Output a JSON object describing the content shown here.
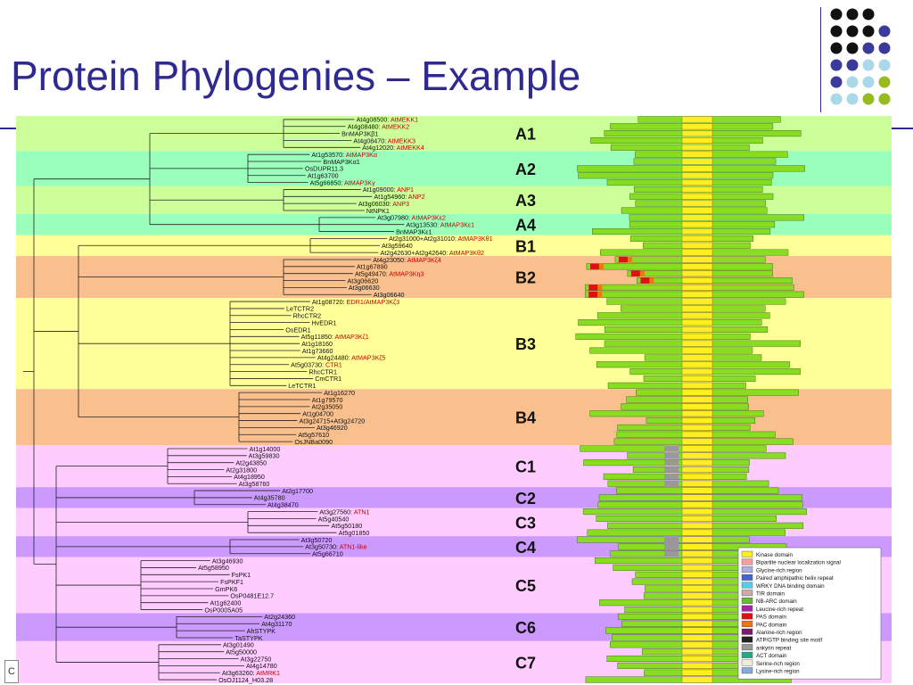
{
  "slide": {
    "title": "Protein Phylogenies – Example",
    "footer_text": "C"
  },
  "colors": {
    "title": "#2f2a8f",
    "band_green": "#ccff99",
    "band_green_alt": "#99ffbb",
    "band_yellow": "#ffff99",
    "band_orange": "#f9c08e",
    "band_pink": "#ffccff",
    "band_purple": "#cc99ff",
    "kinase_yellow": "#ffee22",
    "domain_green": "#88dd22",
    "label_red": "#cc0000",
    "dot_black": "#111111",
    "dot_indigo": "#3a3a9a",
    "dot_lightblue": "#aad8e8",
    "dot_olive": "#99bb22"
  },
  "groups": [
    {
      "label": "A1",
      "color": "#ccff99",
      "leaves": [
        {
          "id": "At4g08500",
          "alias": "AtMEKK1"
        },
        {
          "id": "At4g08480",
          "alias": "AtMEKK2"
        },
        {
          "id": "BnMAP3Kβ1",
          "alias": ""
        },
        {
          "id": "At4g08470",
          "alias": "AtMEKK3"
        },
        {
          "id": "At4g12020",
          "alias": "AtMEKK4"
        }
      ]
    },
    {
      "label": "A2",
      "color": "#99ffbb",
      "leaves": [
        {
          "id": "At1g53570",
          "alias": "AtMAP3Kα"
        },
        {
          "id": "BnMAP3Kα1",
          "alias": ""
        },
        {
          "id": "OsDUPR11.3",
          "alias": ""
        },
        {
          "id": "At1g63700",
          "alias": ""
        },
        {
          "id": "At5g66850",
          "alias": "AtMAP3Kγ"
        }
      ]
    },
    {
      "label": "A3",
      "color": "#ccff99",
      "leaves": [
        {
          "id": "At1g09000",
          "alias": "ANP1"
        },
        {
          "id": "At1g54960",
          "alias": "ANP2"
        },
        {
          "id": "At3g06030",
          "alias": "ANP3"
        },
        {
          "id": "NtNPK1",
          "alias": ""
        }
      ]
    },
    {
      "label": "A4",
      "color": "#99ffbb",
      "leaves": [
        {
          "id": "At3g07980",
          "alias": "AtMAP3Kε2"
        },
        {
          "id": "At3g13530",
          "alias": "AtMAP3Kε1"
        },
        {
          "id": "BnMAP3Kε1",
          "alias": ""
        }
      ]
    },
    {
      "label": "B1",
      "color": "#ffff99",
      "leaves": [
        {
          "id": "At2g31000+At2g31010",
          "alias": "AtMAP3Kθ1"
        },
        {
          "id": "At3g59640",
          "alias": ""
        },
        {
          "id": "At2g42630+At2g42640",
          "alias": "AtMAP3Kθ2"
        }
      ]
    },
    {
      "label": "B2",
      "color": "#f9c08e",
      "leaves": [
        {
          "id": "At4g23050",
          "alias": "AtMAP3Kζ4"
        },
        {
          "id": "At1g67890",
          "alias": ""
        },
        {
          "id": "At5g49470",
          "alias": "AtMAP3Kη3"
        },
        {
          "id": "At3g06620",
          "alias": ""
        },
        {
          "id": "At3g06630",
          "alias": ""
        },
        {
          "id": "At3g06640",
          "alias": ""
        }
      ]
    },
    {
      "label": "B3",
      "color": "#ffff99",
      "leaves": [
        {
          "id": "At1g08720",
          "alias": "EDR1/AtMAP3Kζ3"
        },
        {
          "id": "LeTCTR2",
          "alias": ""
        },
        {
          "id": "RhcCTR2",
          "alias": ""
        },
        {
          "id": "HvEDR1",
          "alias": ""
        },
        {
          "id": "OsEDR1",
          "alias": ""
        },
        {
          "id": "At5g11850",
          "alias": "AtMAP3Kζ1"
        },
        {
          "id": "At1g18160",
          "alias": ""
        },
        {
          "id": "At1g73660",
          "alias": ""
        },
        {
          "id": "At4g24480",
          "alias": "AtMAP3Kζ5"
        },
        {
          "id": "At5g03730",
          "alias": "CTR1"
        },
        {
          "id": "RhcCTR1",
          "alias": ""
        },
        {
          "id": "CmCTR1",
          "alias": ""
        },
        {
          "id": "LeTCTR1",
          "alias": ""
        }
      ]
    },
    {
      "label": "B4",
      "color": "#f9c08e",
      "leaves": [
        {
          "id": "At1g16270",
          "alias": ""
        },
        {
          "id": "At1g79570",
          "alias": ""
        },
        {
          "id": "At2g35050",
          "alias": ""
        },
        {
          "id": "At1g04700",
          "alias": ""
        },
        {
          "id": "At3g24715+At3g24720",
          "alias": ""
        },
        {
          "id": "At3g46920",
          "alias": ""
        },
        {
          "id": "At5g57610",
          "alias": ""
        },
        {
          "id": "OsJNBa0090",
          "alias": ""
        }
      ]
    },
    {
      "label": "C1",
      "color": "#ffccff",
      "leaves": [
        {
          "id": "At1g14000",
          "alias": ""
        },
        {
          "id": "At3g59830",
          "alias": ""
        },
        {
          "id": "At2g43850",
          "alias": ""
        },
        {
          "id": "At2g31800",
          "alias": ""
        },
        {
          "id": "At4g18950",
          "alias": ""
        },
        {
          "id": "At3g58760",
          "alias": ""
        }
      ]
    },
    {
      "label": "C2",
      "color": "#cc99ff",
      "leaves": [
        {
          "id": "At2g17700",
          "alias": ""
        },
        {
          "id": "At4g35780",
          "alias": ""
        },
        {
          "id": "At4g38470",
          "alias": ""
        }
      ]
    },
    {
      "label": "C3",
      "color": "#ffccff",
      "leaves": [
        {
          "id": "At3g27560",
          "alias": "ATN1"
        },
        {
          "id": "At5g40540",
          "alias": ""
        },
        {
          "id": "At5g50180",
          "alias": ""
        },
        {
          "id": "At5g01850",
          "alias": ""
        }
      ]
    },
    {
      "label": "C4",
      "color": "#cc99ff",
      "leaves": [
        {
          "id": "At3g50720",
          "alias": ""
        },
        {
          "id": "At3g50730",
          "alias": "ATN1-like"
        },
        {
          "id": "At5g66710",
          "alias": ""
        }
      ]
    },
    {
      "label": "C5",
      "color": "#ffccff",
      "leaves": [
        {
          "id": "At3g46930",
          "alias": ""
        },
        {
          "id": "At5g58950",
          "alias": ""
        },
        {
          "id": "FsPK1",
          "alias": ""
        },
        {
          "id": "FsPKF1",
          "alias": ""
        },
        {
          "id": "GmPK6",
          "alias": ""
        },
        {
          "id": "OsP0481E12.7",
          "alias": ""
        },
        {
          "id": "At1g62400",
          "alias": ""
        },
        {
          "id": "OsP0005A05",
          "alias": ""
        }
      ]
    },
    {
      "label": "C6",
      "color": "#cc99ff",
      "leaves": [
        {
          "id": "At2g24360",
          "alias": ""
        },
        {
          "id": "At4g31170",
          "alias": ""
        },
        {
          "id": "AhSTYPK",
          "alias": ""
        },
        {
          "id": "TaSTYPK",
          "alias": ""
        }
      ]
    },
    {
      "label": "C7",
      "color": "#ffccff",
      "leaves": [
        {
          "id": "At3g01490",
          "alias": ""
        },
        {
          "id": "At5g50000",
          "alias": ""
        },
        {
          "id": "At3g22750",
          "alias": ""
        },
        {
          "id": "At4g14780",
          "alias": ""
        },
        {
          "id": "At3g63260",
          "alias": "AtMRK1"
        },
        {
          "id": "OsOJ1124_H03.28",
          "alias": ""
        }
      ]
    }
  ],
  "legend": [
    {
      "label": "Kinase domain",
      "color": "#ffee22"
    },
    {
      "label": "Bipartite nuclear localization signal",
      "color": "#f4a0a0"
    },
    {
      "label": "Glycine-rich region",
      "color": "#b0b0e8"
    },
    {
      "label": "Paired amphipathic helix repeat",
      "color": "#4466cc"
    },
    {
      "label": "WRKY DNA binding domain",
      "color": "#55ccee"
    },
    {
      "label": "TIR domain",
      "color": "#ccaaaa"
    },
    {
      "label": "NB-ARC domain",
      "color": "#66bb33"
    },
    {
      "label": "Leucine-rich repeat",
      "color": "#aa22aa"
    },
    {
      "label": "PAS domain",
      "color": "#dd1111"
    },
    {
      "label": "PAC domain",
      "color": "#ee7711"
    },
    {
      "label": "Alanine-rich region",
      "color": "#7a1a6a"
    },
    {
      "label": "ATP/GTP binding site motif",
      "color": "#222222"
    },
    {
      "label": "ankyrin repeat",
      "color": "#999999"
    },
    {
      "label": "ACT domain",
      "color": "#22aa88"
    },
    {
      "label": "Serine-rich region",
      "color": "#eeeedd"
    },
    {
      "label": "Lysine-rich region",
      "color": "#88aadd"
    }
  ]
}
